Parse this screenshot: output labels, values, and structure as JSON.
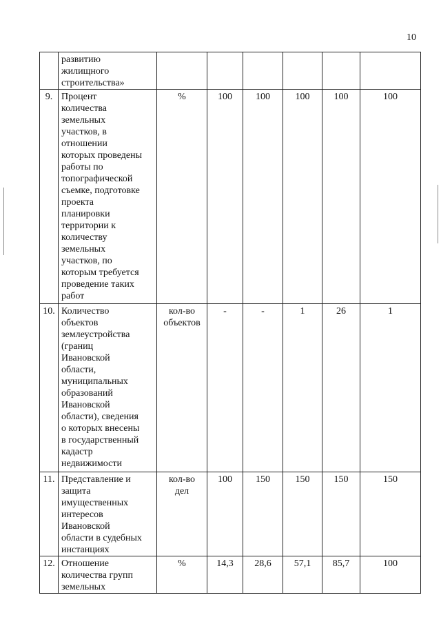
{
  "page_number": "10",
  "table": {
    "rows": [
      {
        "num": "",
        "description": "развитию\nжилищного\nстроительства»",
        "unit": "",
        "values": [
          "",
          "",
          "",
          "",
          ""
        ]
      },
      {
        "num": "9.",
        "description": "Процент\nколичества\nземельных\nучастков, в\nотношении\nкоторых проведены\nработы по\nтопографической\nсъемке, подготовке\nпроекта\nпланировки\nтерритории к\nколичеству\nземельных\nучастков, по\nкоторым требуется\nпроведение таких\nработ",
        "unit": "%",
        "values": [
          "100",
          "100",
          "100",
          "100",
          "100"
        ]
      },
      {
        "num": "10.",
        "description": "Количество\nобъектов\nземлеустройства\n(границ\nИвановской\nобласти,\nмуниципальных\nобразований\nИвановской\nобласти),  сведения\nо  которых  внесены\nв  государственный\nкадастр\nнедвижимости",
        "unit": "кол-во\nобъектов",
        "values": [
          "-",
          "-",
          "1",
          "26",
          "1"
        ]
      },
      {
        "num": "11.",
        "description": "Представление и\nзащита\nимущественных\nинтересов\nИвановской\nобласти в судебных\nинстанциях",
        "unit": "кол-во\nдел",
        "values": [
          "100",
          "150",
          "150",
          "150",
          "150"
        ]
      },
      {
        "num": "12.",
        "description": "Отношение\nколичества      групп\nземельных",
        "unit": "%",
        "values": [
          "14,3",
          "28,6",
          "57,1",
          "85,7",
          "100"
        ]
      }
    ]
  }
}
